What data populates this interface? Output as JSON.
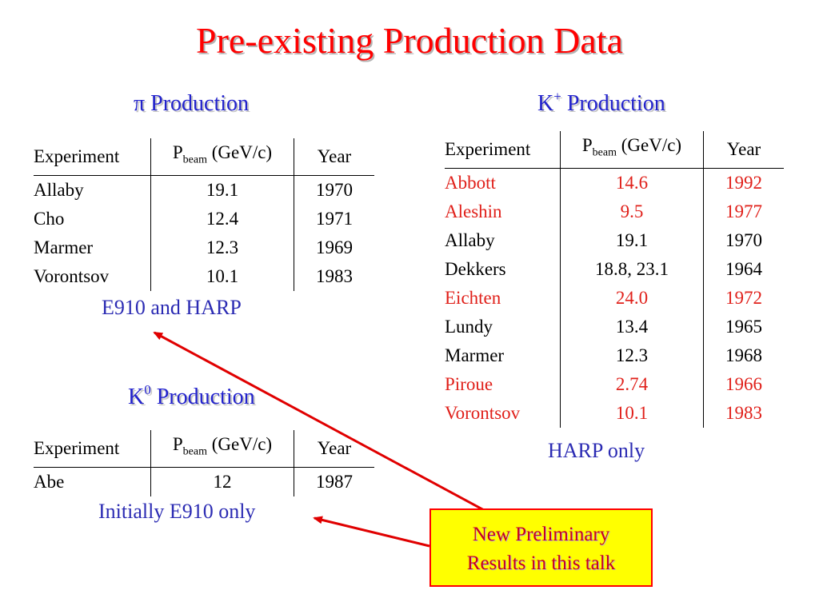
{
  "title": "Pre-existing Production Data",
  "pi_section": {
    "heading": "π Production",
    "columns": {
      "experiment": "Experiment",
      "p": "P",
      "p_sub": "beam",
      "p_unit": " (GeV/c)",
      "year": "Year"
    },
    "rows": [
      {
        "experiment": "Allaby",
        "p": "19.1",
        "year": "1970"
      },
      {
        "experiment": "Cho",
        "p": "12.4",
        "year": "1971"
      },
      {
        "experiment": "Marmer",
        "p": "12.3",
        "year": "1969"
      },
      {
        "experiment": "Vorontsov",
        "p": "10.1",
        "year": "1983"
      }
    ],
    "note": "E910 and HARP"
  },
  "k0_section": {
    "heading_main": "K",
    "heading_sup": "0",
    "heading_rest": " Production",
    "columns": {
      "experiment": "Experiment",
      "p": "P",
      "p_sub": "beam",
      "p_unit": " (GeV/c)",
      "year": "Year"
    },
    "rows": [
      {
        "experiment": "Abe",
        "p": "12",
        "year": "1987"
      }
    ],
    "note": "Initially E910 only"
  },
  "kplus_section": {
    "heading_main": "K",
    "heading_sup": "+",
    "heading_rest": " Production",
    "columns": {
      "experiment": "Experiment",
      "p": "P",
      "p_sub": "beam",
      "p_unit": " (GeV/c)",
      "year": "Year"
    },
    "rows": [
      {
        "experiment": "Abbott",
        "p": "14.6",
        "year": "1992"
      },
      {
        "experiment": "Aleshin",
        "p": "9.5",
        "year": "1977"
      },
      {
        "experiment": "Allaby",
        "p": "19.1",
        "year": "1970"
      },
      {
        "experiment": "Dekkers",
        "p": "18.8, 23.1",
        "year": "1964"
      },
      {
        "experiment": "Eichten",
        "p": "24.0",
        "year": "1972"
      },
      {
        "experiment": "Lundy",
        "p": "13.4",
        "year": "1965"
      },
      {
        "experiment": "Marmer",
        "p": "12.3",
        "year": "1968"
      },
      {
        "experiment": "Piroue",
        "p": "2.74",
        "year": "1966"
      },
      {
        "experiment": "Vorontsov",
        "p": "10.1",
        "year": "1983"
      }
    ],
    "highlighted_rows": [
      "Abbott",
      "Aleshin",
      "Eichten",
      "Piroue",
      "Vorontsov"
    ],
    "note": "HARP only"
  },
  "callout": {
    "line1": "New Preliminary",
    "line2": "Results in this talk"
  },
  "colors": {
    "title": "#ff0000",
    "heading": "#2222cc",
    "note": "#2b2bb3",
    "highlight_row": "#e0201a",
    "callout_bg": "#ffff00",
    "callout_border": "#ff0000",
    "arrow": "#e00000"
  }
}
